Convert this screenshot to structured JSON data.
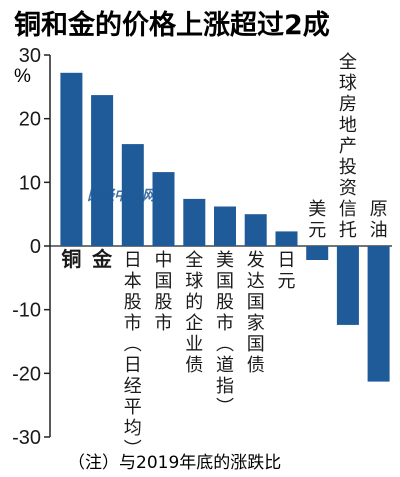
{
  "chart_data": {
    "type": "bar",
    "title": "铜和金的价格上涨超过2成",
    "unit_label": "%",
    "categories": [
      "铜",
      "金",
      "日本股市（日经平均）",
      "中国股市",
      "全球的企业债",
      "美国股市（道指）",
      "发达国家国债",
      "日元",
      "美元",
      "全球房地产投资信托",
      "原油"
    ],
    "values": [
      27.2,
      23.7,
      16.0,
      11.6,
      7.4,
      6.2,
      5.0,
      2.3,
      -2.2,
      -12.4,
      -21.3
    ],
    "ylim": [
      -30,
      30
    ],
    "yticks": [
      30,
      20,
      10,
      0,
      -10,
      -20,
      -30
    ],
    "grid": false,
    "bar_color": "#1f5a99",
    "note": "（注）与2019年底的涨跌比",
    "watermark": "日经中文网",
    "watermark_color": "#1f5a99"
  }
}
